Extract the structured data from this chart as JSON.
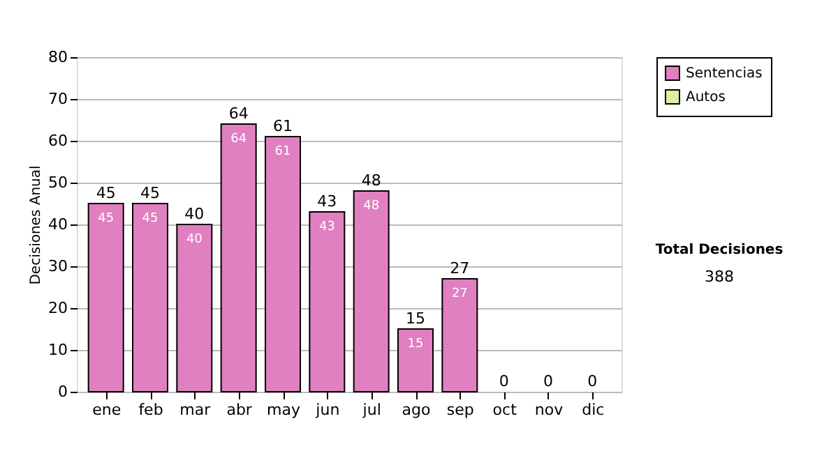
{
  "chart_data": {
    "type": "bar",
    "stacked": true,
    "ylabel": "Decisiones Anual",
    "categories": [
      "ene",
      "feb",
      "mar",
      "abr",
      "may",
      "jun",
      "jul",
      "ago",
      "sep",
      "oct",
      "nov",
      "dic"
    ],
    "series": [
      {
        "name": "Sentencias",
        "color": "#e080c0",
        "values": [
          45,
          45,
          40,
          64,
          61,
          43,
          48,
          15,
          27,
          0,
          0,
          0
        ],
        "value_labels": [
          "45",
          "45",
          "40",
          "64",
          "61",
          "43",
          "48",
          "15",
          "27",
          null,
          null,
          null
        ]
      },
      {
        "name": "Autos",
        "color": "#d8f0a0",
        "values": [
          0,
          0,
          0,
          0,
          0,
          0,
          0,
          0,
          0,
          0,
          0,
          0
        ]
      }
    ],
    "totals": [
      "45",
      "45",
      "40",
      "64",
      "61",
      "43",
      "48",
      "15",
      "27",
      "0",
      "0",
      "0"
    ],
    "ylim": [
      0,
      80
    ],
    "yticks": [
      0,
      10,
      20,
      30,
      40,
      50,
      60,
      70,
      80
    ],
    "grid": "y",
    "legend": "right",
    "annotations": [
      "Total Decisiones",
      "388"
    ]
  }
}
